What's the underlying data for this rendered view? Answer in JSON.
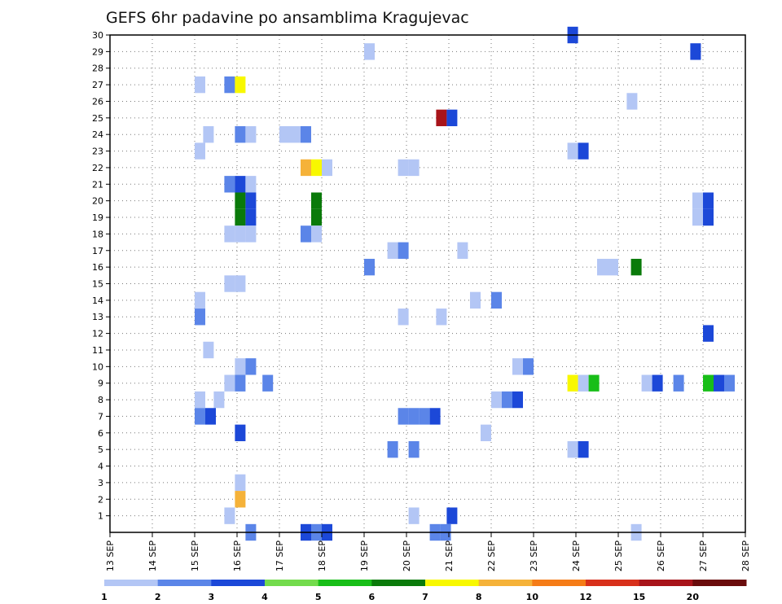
{
  "chart_data": {
    "type": "heatmap",
    "title": "GEFS 6hr padavine po ansamblima Kragujevac",
    "x_start_day": 13,
    "x_end_day": 28,
    "x_month": "SEP",
    "x_ticks": [
      "13 SEP",
      "14 SEP",
      "15 SEP",
      "16 SEP",
      "17 SEP",
      "18 SEP",
      "19 SEP",
      "20 SEP",
      "21 SEP",
      "22 SEP",
      "23 SEP",
      "24 SEP",
      "25 SEP",
      "26 SEP",
      "27 SEP",
      "28 SEP"
    ],
    "y_ticks": [
      1,
      2,
      3,
      4,
      5,
      6,
      7,
      8,
      9,
      10,
      11,
      12,
      13,
      14,
      15,
      16,
      17,
      18,
      19,
      20,
      21,
      22,
      23,
      24,
      25,
      26,
      27,
      28,
      29,
      30
    ],
    "ylim": [
      0,
      30
    ],
    "grid": true,
    "legend": {
      "position": "bottom",
      "labels": [
        "1",
        "2",
        "3",
        "4",
        "5",
        "6",
        "7",
        "8",
        "10",
        "12",
        "15",
        "20"
      ],
      "colors": [
        "#b3c6f5",
        "#5b85e8",
        "#1c48d8",
        "#73db4c",
        "#18be18",
        "#0a7a0a",
        "#f8f800",
        "#f5b239",
        "#f57c17",
        "#d8301b",
        "#a8141a",
        "#6a0c0c"
      ]
    },
    "cells": [
      [
        30,
        10.8,
        "#1c48d8"
      ],
      [
        29,
        6.0,
        "#b3c6f5"
      ],
      [
        29,
        13.7,
        "#1c48d8"
      ],
      [
        27,
        2.0,
        "#b3c6f5"
      ],
      [
        27,
        2.7,
        "#5b85e8"
      ],
      [
        27,
        2.95,
        "#f8f800"
      ],
      [
        26,
        12.2,
        "#b3c6f5"
      ],
      [
        25,
        7.7,
        "#a8141a"
      ],
      [
        25,
        7.95,
        "#1c48d8"
      ],
      [
        24,
        2.2,
        "#b3c6f5"
      ],
      [
        24,
        2.95,
        "#5b85e8"
      ],
      [
        24,
        3.2,
        "#b3c6f5"
      ],
      [
        24,
        4.0,
        "#b3c6f5"
      ],
      [
        24,
        4.25,
        "#b3c6f5"
      ],
      [
        24,
        4.5,
        "#5b85e8"
      ],
      [
        23,
        2.0,
        "#b3c6f5"
      ],
      [
        23,
        10.8,
        "#b3c6f5"
      ],
      [
        23,
        11.05,
        "#1c48d8"
      ],
      [
        22,
        4.5,
        "#f5b239"
      ],
      [
        22,
        4.75,
        "#f8f800"
      ],
      [
        22,
        5.0,
        "#b3c6f5"
      ],
      [
        22,
        6.8,
        "#b3c6f5"
      ],
      [
        22,
        7.05,
        "#b3c6f5"
      ],
      [
        21,
        2.7,
        "#5b85e8"
      ],
      [
        21,
        2.95,
        "#1c48d8"
      ],
      [
        21,
        3.2,
        "#b3c6f5"
      ],
      [
        20,
        2.95,
        "#0a7a0a"
      ],
      [
        20,
        3.2,
        "#1c48d8"
      ],
      [
        20,
        4.75,
        "#0a7a0a"
      ],
      [
        20,
        13.75,
        "#b3c6f5"
      ],
      [
        20,
        14.0,
        "#1c48d8"
      ],
      [
        19,
        2.95,
        "#0a7a0a"
      ],
      [
        19,
        3.2,
        "#1c48d8"
      ],
      [
        19,
        4.75,
        "#0a7a0a"
      ],
      [
        19,
        13.75,
        "#b3c6f5"
      ],
      [
        19,
        14.0,
        "#1c48d8"
      ],
      [
        18,
        2.7,
        "#b3c6f5"
      ],
      [
        18,
        2.95,
        "#b3c6f5"
      ],
      [
        18,
        3.2,
        "#b3c6f5"
      ],
      [
        18,
        4.5,
        "#5b85e8"
      ],
      [
        18,
        4.75,
        "#b3c6f5"
      ],
      [
        17,
        6.55,
        "#b3c6f5"
      ],
      [
        17,
        6.8,
        "#5b85e8"
      ],
      [
        17,
        8.2,
        "#b3c6f5"
      ],
      [
        16,
        6.0,
        "#5b85e8"
      ],
      [
        16,
        11.5,
        "#b3c6f5"
      ],
      [
        16,
        11.75,
        "#b3c6f5"
      ],
      [
        16,
        12.3,
        "#0a7a0a"
      ],
      [
        15,
        2.7,
        "#b3c6f5"
      ],
      [
        15,
        2.95,
        "#b3c6f5"
      ],
      [
        14,
        2.0,
        "#b3c6f5"
      ],
      [
        14,
        8.5,
        "#b3c6f5"
      ],
      [
        14,
        9.0,
        "#5b85e8"
      ],
      [
        13,
        2.0,
        "#5b85e8"
      ],
      [
        13,
        6.8,
        "#b3c6f5"
      ],
      [
        13,
        7.7,
        "#b3c6f5"
      ],
      [
        12,
        14.0,
        "#1c48d8"
      ],
      [
        11,
        2.2,
        "#b3c6f5"
      ],
      [
        10,
        2.95,
        "#b3c6f5"
      ],
      [
        10,
        3.2,
        "#5b85e8"
      ],
      [
        10,
        9.5,
        "#b3c6f5"
      ],
      [
        10,
        9.75,
        "#5b85e8"
      ],
      [
        9,
        2.7,
        "#b3c6f5"
      ],
      [
        9,
        2.95,
        "#5b85e8"
      ],
      [
        9,
        3.6,
        "#5b85e8"
      ],
      [
        9,
        10.8,
        "#f8f800"
      ],
      [
        9,
        11.05,
        "#b3c6f5"
      ],
      [
        9,
        11.3,
        "#18be18"
      ],
      [
        9,
        12.55,
        "#b3c6f5"
      ],
      [
        9,
        12.8,
        "#1c48d8"
      ],
      [
        9,
        13.3,
        "#5b85e8"
      ],
      [
        9,
        14.0,
        "#18be18"
      ],
      [
        9,
        14.25,
        "#1c48d8"
      ],
      [
        9,
        14.5,
        "#5b85e8"
      ],
      [
        8,
        2.0,
        "#b3c6f5"
      ],
      [
        8,
        2.45,
        "#b3c6f5"
      ],
      [
        8,
        9.0,
        "#b3c6f5"
      ],
      [
        8,
        9.25,
        "#5b85e8"
      ],
      [
        8,
        9.5,
        "#1c48d8"
      ],
      [
        7,
        2.0,
        "#5b85e8"
      ],
      [
        7,
        2.25,
        "#1c48d8"
      ],
      [
        7,
        6.8,
        "#5b85e8"
      ],
      [
        7,
        7.05,
        "#5b85e8"
      ],
      [
        7,
        7.3,
        "#5b85e8"
      ],
      [
        7,
        7.55,
        "#1c48d8"
      ],
      [
        6,
        2.95,
        "#1c48d8"
      ],
      [
        6,
        8.75,
        "#b3c6f5"
      ],
      [
        5,
        6.55,
        "#5b85e8"
      ],
      [
        5,
        7.05,
        "#5b85e8"
      ],
      [
        5,
        10.8,
        "#b3c6f5"
      ],
      [
        5,
        11.05,
        "#1c48d8"
      ],
      [
        3,
        2.95,
        "#b3c6f5"
      ],
      [
        2,
        2.95,
        "#f5b239"
      ],
      [
        1,
        2.7,
        "#b3c6f5"
      ],
      [
        1,
        7.05,
        "#b3c6f5"
      ],
      [
        1,
        7.95,
        "#1c48d8"
      ],
      [
        0,
        3.2,
        "#5b85e8"
      ],
      [
        0,
        4.5,
        "#1c48d8"
      ],
      [
        0,
        4.75,
        "#5b85e8"
      ],
      [
        0,
        5.0,
        "#1c48d8"
      ],
      [
        0,
        7.55,
        "#5b85e8"
      ],
      [
        0,
        7.8,
        "#5b85e8"
      ],
      [
        0,
        12.3,
        "#b3c6f5"
      ]
    ]
  }
}
